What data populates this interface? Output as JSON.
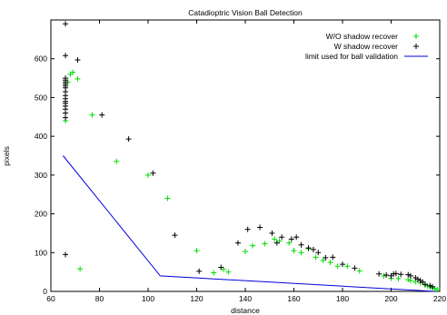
{
  "chart_data": {
    "type": "scatter",
    "title": "Catadioptric Vision Ball Detection",
    "xlabel": "distance",
    "ylabel": "pixels",
    "xlim": [
      60,
      220
    ],
    "ylim": [
      0,
      700
    ],
    "xticks": [
      60,
      80,
      100,
      120,
      140,
      160,
      180,
      200,
      220
    ],
    "yticks": [
      0,
      100,
      200,
      300,
      400,
      500,
      600
    ],
    "legend_position": "top-right",
    "grid": false,
    "series": [
      {
        "name": "W/O shadow recover",
        "kind": "points",
        "marker": "plus",
        "color": "#00dd00",
        "points": [
          [
            66,
            440
          ],
          [
            67,
            540
          ],
          [
            68,
            560
          ],
          [
            69,
            565
          ],
          [
            71,
            548
          ],
          [
            72,
            58
          ],
          [
            77,
            455
          ],
          [
            87,
            335
          ],
          [
            100,
            300
          ],
          [
            108,
            240
          ],
          [
            120,
            105
          ],
          [
            127,
            48
          ],
          [
            131,
            57
          ],
          [
            133,
            50
          ],
          [
            140,
            103
          ],
          [
            143,
            118
          ],
          [
            148,
            123
          ],
          [
            152,
            135
          ],
          [
            154,
            130
          ],
          [
            158,
            125
          ],
          [
            160,
            105
          ],
          [
            163,
            100
          ],
          [
            166,
            110
          ],
          [
            169,
            88
          ],
          [
            172,
            80
          ],
          [
            175,
            75
          ],
          [
            178,
            65
          ],
          [
            182,
            65
          ],
          [
            187,
            53
          ],
          [
            197,
            40
          ],
          [
            200,
            34
          ],
          [
            203,
            33
          ],
          [
            207,
            30
          ],
          [
            208,
            28
          ],
          [
            210,
            25
          ],
          [
            212,
            22
          ],
          [
            214,
            17
          ],
          [
            215,
            14
          ],
          [
            216,
            12
          ],
          [
            217,
            9
          ],
          [
            218,
            7
          ],
          [
            219,
            5
          ]
        ]
      },
      {
        "name": "W shadow recover",
        "kind": "points",
        "marker": "plus",
        "color": "#000000",
        "points": [
          [
            66,
            690
          ],
          [
            66,
            608
          ],
          [
            66,
            550
          ],
          [
            66,
            545
          ],
          [
            66,
            540
          ],
          [
            66,
            535
          ],
          [
            66,
            530
          ],
          [
            66,
            525
          ],
          [
            66,
            515
          ],
          [
            66,
            505
          ],
          [
            66,
            497
          ],
          [
            66,
            490
          ],
          [
            66,
            485
          ],
          [
            66,
            478
          ],
          [
            66,
            470
          ],
          [
            66,
            460
          ],
          [
            66,
            448
          ],
          [
            66,
            95
          ],
          [
            71,
            597
          ],
          [
            81,
            455
          ],
          [
            92,
            393
          ],
          [
            102,
            305
          ],
          [
            111,
            145
          ],
          [
            121,
            52
          ],
          [
            130,
            62
          ],
          [
            137,
            125
          ],
          [
            141,
            160
          ],
          [
            146,
            165
          ],
          [
            151,
            150
          ],
          [
            153,
            125
          ],
          [
            155,
            140
          ],
          [
            159,
            135
          ],
          [
            161,
            140
          ],
          [
            163,
            120
          ],
          [
            166,
            112
          ],
          [
            168,
            108
          ],
          [
            170,
            100
          ],
          [
            173,
            87
          ],
          [
            176,
            88
          ],
          [
            180,
            70
          ],
          [
            185,
            60
          ],
          [
            195,
            45
          ],
          [
            198,
            42
          ],
          [
            200,
            40
          ],
          [
            201,
            45
          ],
          [
            202,
            46
          ],
          [
            204,
            44
          ],
          [
            207,
            43
          ],
          [
            208,
            40
          ],
          [
            210,
            35
          ],
          [
            211,
            31
          ],
          [
            212,
            28
          ],
          [
            213,
            24
          ],
          [
            214,
            18
          ],
          [
            216,
            15
          ],
          [
            217,
            12
          ]
        ]
      },
      {
        "name": "limit used for ball validation",
        "kind": "line",
        "color": "#0000dd",
        "points": [
          [
            65,
            350
          ],
          [
            105,
            40
          ],
          [
            218,
            0
          ]
        ]
      }
    ]
  }
}
